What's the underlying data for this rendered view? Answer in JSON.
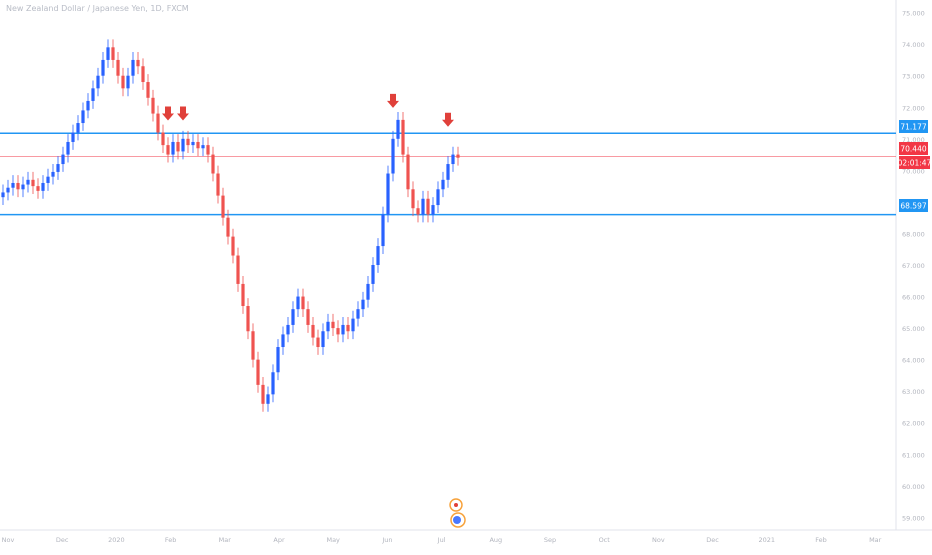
{
  "title": "New Zealand Dollar / Japanese Yen, 1D, FXCM",
  "colors": {
    "bull": "#2962ff",
    "bear": "#ef5350",
    "hline": "#2196f3",
    "price_line": "#f23645",
    "axis_text": "#b2b5be",
    "arrow": "#e0403a"
  },
  "price_axis": {
    "ticks": [
      "75.000",
      "74.000",
      "73.000",
      "72.000",
      "71.000",
      "70.000",
      "69.000",
      "68.000",
      "67.000",
      "66.000",
      "65.000",
      "64.000",
      "63.000",
      "62.000",
      "61.000",
      "60.000",
      "59.000"
    ]
  },
  "time_axis": {
    "ticks": [
      "Nov",
      "Dec",
      "2020",
      "Feb",
      "Mar",
      "Apr",
      "May",
      "Jun",
      "Jul",
      "Aug",
      "Sep",
      "Oct",
      "Nov",
      "Dec",
      "2021",
      "Feb",
      "Mar"
    ]
  },
  "badges": {
    "resistance": "71.177",
    "current": "70.440",
    "countdown": "02:01:47",
    "support": "68.597"
  },
  "chart_data": {
    "type": "candlestick",
    "title": "New Zealand Dollar / Japanese Yen, 1D, FXCM",
    "ylim": [
      58.6,
      75.4
    ],
    "grid": false,
    "horizontal_lines": [
      {
        "name": "resistance",
        "value": 71.177
      },
      {
        "name": "support",
        "value": 68.597
      }
    ],
    "last_price": 70.44,
    "arrows_above_price": [
      71.2,
      71.2,
      71.6,
      71.0
    ],
    "series": [
      {
        "name": "close",
        "values": [
          69.3,
          69.45,
          69.6,
          69.4,
          69.55,
          69.7,
          69.5,
          69.35,
          69.6,
          69.8,
          69.95,
          70.2,
          70.5,
          70.9,
          71.2,
          71.5,
          71.9,
          72.2,
          72.6,
          73.0,
          73.5,
          73.9,
          73.5,
          73.0,
          72.6,
          73.0,
          73.5,
          73.3,
          72.8,
          72.3,
          71.8,
          71.2,
          70.8,
          70.5,
          70.9,
          70.6,
          71.0,
          70.8,
          70.9,
          70.7,
          70.8,
          70.5,
          69.9,
          69.2,
          68.5,
          67.9,
          67.3,
          66.4,
          65.7,
          64.9,
          64.0,
          63.2,
          62.6,
          62.9,
          63.6,
          64.4,
          64.8,
          65.1,
          65.6,
          66.0,
          65.6,
          65.1,
          64.7,
          64.4,
          64.9,
          65.2,
          65.0,
          64.8,
          65.1,
          64.9,
          65.3,
          65.6,
          65.9,
          66.4,
          67.0,
          67.6,
          68.6,
          69.9,
          71.0,
          71.6,
          70.5,
          69.4,
          68.8,
          68.6,
          69.1,
          68.6,
          68.9,
          69.4,
          69.7,
          70.2,
          70.5,
          70.4
        ]
      }
    ]
  }
}
